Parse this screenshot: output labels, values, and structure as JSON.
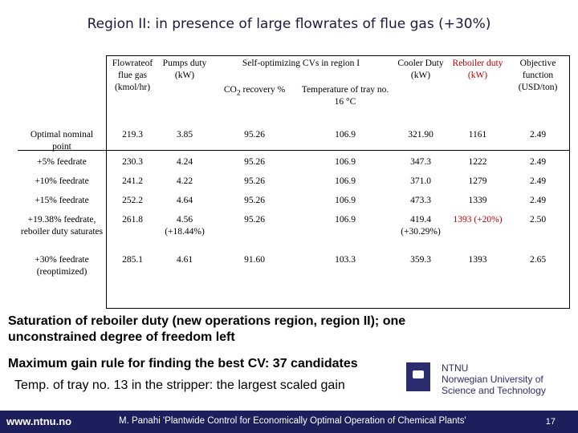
{
  "title": "Region II: in presence of large flowrates of flue gas (+30%)",
  "table": {
    "headers": {
      "flowrate": "Flowrateof flue gas (kmol/hr)",
      "pumps": "Pumps duty (kW)",
      "selfopt": "Self-optimizing CVs in region I",
      "co2_a": "CO",
      "co2_sub": "2",
      "co2_b": " recovery %",
      "temp": "Temperature of tray no. 16 °C",
      "cooler": "Cooler Duty (kW)",
      "reboiler": "Reboiler duty (kW)",
      "objective": "Objective function (USD/ton)"
    },
    "rows": [
      {
        "label": "Optimal nominal point",
        "flow": "219.3",
        "pumps": "3.85",
        "co2": "95.26",
        "temp": "106.9",
        "cooler": "321.90",
        "reboiler": "1161",
        "obj": "2.49"
      },
      {
        "label": "+5% feedrate",
        "flow": "230.3",
        "pumps": "4.24",
        "co2": "95.26",
        "temp": "106.9",
        "cooler": "347.3",
        "reboiler": "1222",
        "obj": "2.49"
      },
      {
        "label": "+10% feedrate",
        "flow": "241.2",
        "pumps": "4.22",
        "co2": "95.26",
        "temp": "106.9",
        "cooler": "371.0",
        "reboiler": "1279",
        "obj": "2.49"
      },
      {
        "label": "+15% feedrate",
        "flow": "252.2",
        "pumps": "4.64",
        "co2": "95.26",
        "temp": "106.9",
        "cooler": "473.3",
        "reboiler": "1339",
        "obj": "2.49"
      },
      {
        "label": "+19.38% feedrate, reboiler duty saturates",
        "flow": "261.8",
        "pumps": "4.56 (+18.44%)",
        "co2": "95.26",
        "temp": "106.9",
        "cooler": "419.4 (+30.29%)",
        "reboiler": "1393 (+20%)",
        "obj": "2.50"
      },
      {
        "label": "+30% feedrate (reoptimized)",
        "flow": "285.1",
        "pumps": "4.61",
        "co2": "91.60",
        "temp": "103.3",
        "cooler": "359.3",
        "reboiler": "1393",
        "obj": "2.65"
      }
    ]
  },
  "text": {
    "saturation": "Saturation of reboiler duty (new operations region, region II); one unconstrained degree of freedom left",
    "max_gain": "Maximum gain rule for finding the best CV: 37 candidates",
    "temp_note": "Temp. of tray no. 13 in the stripper: the largest scaled gain"
  },
  "logo": {
    "line1": "NTNU",
    "line2": "Norwegian University of",
    "line3": "Science and Technology"
  },
  "footer": {
    "url": "www.ntnu.no",
    "citation": "M. Panahi 'Plantwide Control for Economically Optimal Operation of Chemical Plants'",
    "page": "17"
  },
  "colors": {
    "title": "#1a1a40",
    "highlight": "#c00000",
    "footer_bg": "#1c1f5c",
    "logo": "#2b2d6e"
  }
}
